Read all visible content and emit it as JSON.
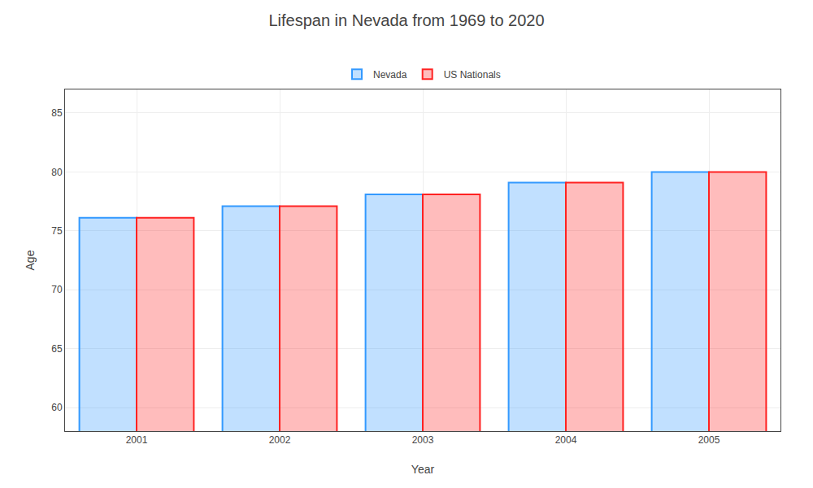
{
  "chart_data": {
    "type": "bar",
    "title": "Lifespan in Nevada from 1969 to 2020",
    "xlabel": "Year",
    "ylabel": "Age",
    "categories": [
      "2001",
      "2002",
      "2003",
      "2004",
      "2005"
    ],
    "series": [
      {
        "name": "Nevada",
        "color": "#3399FF",
        "values": [
          76.1,
          77.1,
          78.1,
          79.1,
          80.0
        ]
      },
      {
        "name": "US Nationals",
        "color": "#FF2222",
        "values": [
          76.1,
          77.1,
          78.1,
          79.1,
          80.0
        ]
      }
    ],
    "ylim": [
      58,
      87
    ],
    "yticks": [
      60,
      65,
      70,
      75,
      80,
      85
    ],
    "grid": true,
    "legend": "top"
  }
}
